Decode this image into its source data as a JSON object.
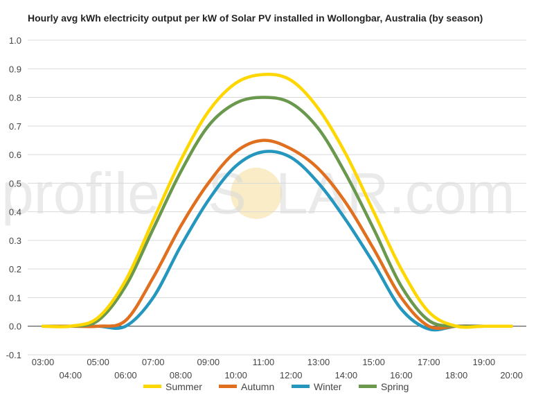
{
  "watermark": {
    "text_left": "profile",
    "text_s": "S",
    "text_right": "LAR.com"
  },
  "chart_data": {
    "type": "line",
    "title": "Hourly avg kWh electricity output per kW of Solar PV installed in Wollongbar, Australia (by season)",
    "xlabel": "",
    "ylabel": "",
    "ylim": [
      -0.1,
      1.0
    ],
    "yticks": [
      -0.1,
      0.0,
      0.1,
      0.2,
      0.3,
      0.4,
      0.5,
      0.6,
      0.7,
      0.8,
      0.9,
      1.0
    ],
    "x": [
      "03:00",
      "04:00",
      "05:00",
      "06:00",
      "07:00",
      "08:00",
      "09:00",
      "10:00",
      "11:00",
      "12:00",
      "13:00",
      "14:00",
      "15:00",
      "16:00",
      "17:00",
      "18:00",
      "19:00",
      "20:00"
    ],
    "grid": true,
    "legend": "bottom",
    "series": [
      {
        "name": "Summer",
        "color": "#FFD700",
        "values": [
          0,
          0,
          0.03,
          0.16,
          0.37,
          0.58,
          0.75,
          0.85,
          0.88,
          0.86,
          0.76,
          0.6,
          0.4,
          0.2,
          0.05,
          0.0,
          0,
          0
        ]
      },
      {
        "name": "Autumn",
        "color": "#E07020",
        "values": [
          0,
          0,
          0,
          0.02,
          0.17,
          0.35,
          0.5,
          0.61,
          0.65,
          0.62,
          0.55,
          0.43,
          0.27,
          0.1,
          0.0,
          0,
          0,
          0
        ]
      },
      {
        "name": "Winter",
        "color": "#2596BE",
        "values": [
          0,
          0,
          0,
          0,
          0.1,
          0.28,
          0.44,
          0.56,
          0.61,
          0.59,
          0.5,
          0.37,
          0.22,
          0.06,
          -0.01,
          0,
          0,
          0
        ]
      },
      {
        "name": "Spring",
        "color": "#6A994E",
        "values": [
          0,
          0,
          0.02,
          0.14,
          0.34,
          0.54,
          0.7,
          0.78,
          0.8,
          0.78,
          0.69,
          0.53,
          0.34,
          0.14,
          0.02,
          0,
          0,
          0
        ]
      }
    ]
  }
}
